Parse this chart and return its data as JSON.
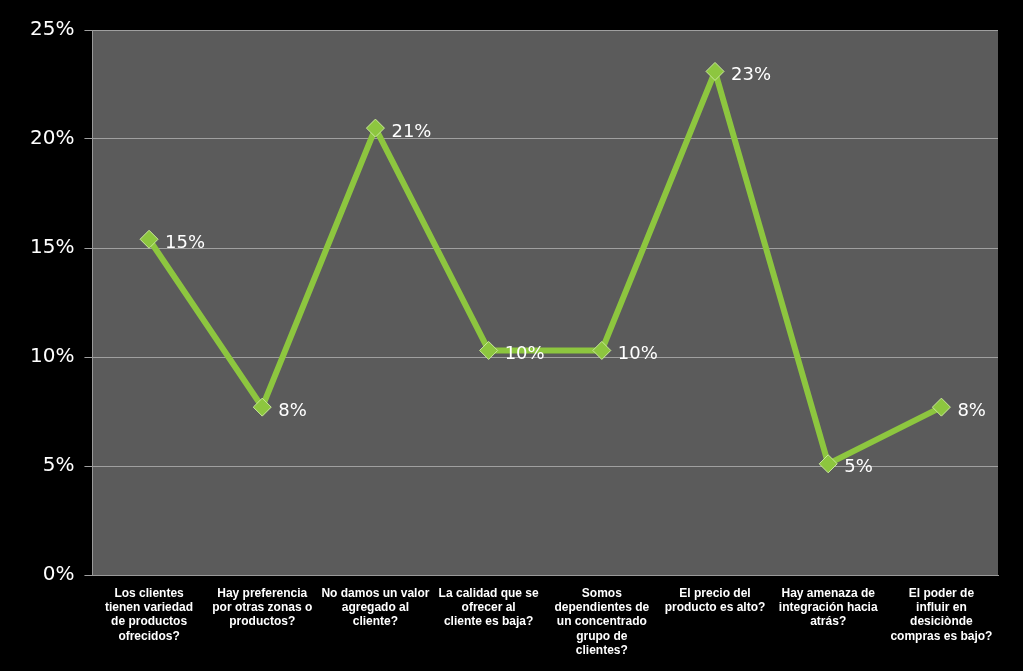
{
  "chart_data": {
    "type": "line",
    "categories": [
      "Los clientes tienen variedad de productos ofrecidos?",
      "Hay preferencia por otras zonas o productos?",
      "No damos un valor agregado al cliente?",
      "La calidad que se ofrecer al cliente es baja?",
      "Somos dependientes de un concentrado grupo de clientes?",
      "El precio del producto es alto?",
      "Hay amenaza de integración hacia atrás?",
      "El poder de influir en desiciònde compras es bajo?"
    ],
    "series": [
      {
        "color": "#8dc63f",
        "values": [
          15.4,
          7.7,
          20.5,
          10.3,
          10.3,
          23.1,
          5.1,
          7.7
        ],
        "value_labels": [
          "15%",
          "8%",
          "21%",
          "10%",
          "10%",
          "23%",
          "5%",
          "8%"
        ]
      }
    ],
    "ylim": [
      0,
      25
    ],
    "yticks": [
      {
        "value": 0,
        "label": "0%"
      },
      {
        "value": 5,
        "label": "5%"
      },
      {
        "value": 10,
        "label": "10%"
      },
      {
        "value": 15,
        "label": "15%"
      },
      {
        "value": 20,
        "label": "20%"
      },
      {
        "value": 25,
        "label": "25%"
      }
    ],
    "grid": "y",
    "legend": false,
    "marker": "diamond",
    "line_style": "solid"
  }
}
